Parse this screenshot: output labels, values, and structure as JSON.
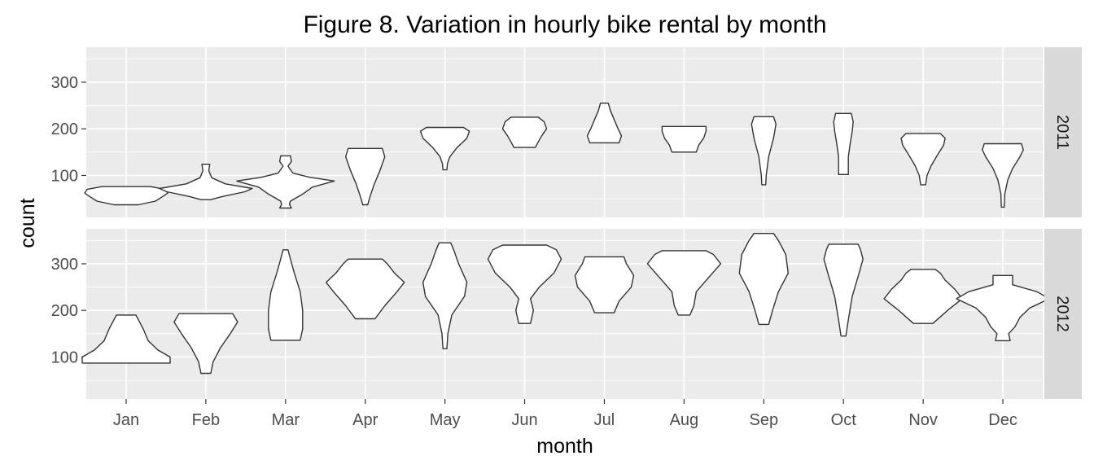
{
  "chart_data": {
    "type": "violin",
    "title": "Figure 8. Variation in hourly bike rental by month",
    "xlabel": "month",
    "ylabel": "count",
    "categories": [
      "Jan",
      "Feb",
      "Mar",
      "Apr",
      "May",
      "Jun",
      "Jul",
      "Aug",
      "Sep",
      "Oct",
      "Nov",
      "Dec"
    ],
    "ylim": [
      10,
      375
    ],
    "yticks": [
      100,
      200,
      300
    ],
    "grid": true,
    "facets": [
      {
        "label": "2011",
        "violins": [
          {
            "month": "Jan",
            "min": 37,
            "max": 76,
            "profile": [
              [
                37,
                0.25
              ],
              [
                45,
                0.6
              ],
              [
                55,
                0.75
              ],
              [
                62,
                0.85
              ],
              [
                70,
                0.8
              ],
              [
                76,
                0.5
              ]
            ]
          },
          {
            "month": "Feb",
            "min": 48,
            "max": 124,
            "profile": [
              [
                48,
                0.1
              ],
              [
                55,
                0.35
              ],
              [
                65,
                0.8
              ],
              [
                72,
                0.95
              ],
              [
                82,
                0.4
              ],
              [
                95,
                0.12
              ],
              [
                110,
                0.06
              ],
              [
                124,
                0.08
              ]
            ]
          },
          {
            "month": "Mar",
            "min": 30,
            "max": 142,
            "profile": [
              [
                30,
                0.12
              ],
              [
                38,
                0.08
              ],
              [
                45,
                0.1
              ],
              [
                60,
                0.35
              ],
              [
                75,
                0.55
              ],
              [
                88,
                1.0
              ],
              [
                96,
                0.5
              ],
              [
                105,
                0.15
              ],
              [
                120,
                0.05
              ],
              [
                130,
                0.12
              ],
              [
                142,
                0.1
              ]
            ]
          },
          {
            "month": "Apr",
            "min": 37,
            "max": 158,
            "profile": [
              [
                37,
                0.05
              ],
              [
                55,
                0.1
              ],
              [
                80,
                0.18
              ],
              [
                110,
                0.3
              ],
              [
                140,
                0.4
              ],
              [
                158,
                0.35
              ]
            ]
          },
          {
            "month": "May",
            "min": 112,
            "max": 203,
            "profile": [
              [
                112,
                0.04
              ],
              [
                125,
                0.05
              ],
              [
                140,
                0.1
              ],
              [
                160,
                0.25
              ],
              [
                180,
                0.45
              ],
              [
                195,
                0.5
              ],
              [
                203,
                0.38
              ]
            ]
          },
          {
            "month": "Jun",
            "min": 160,
            "max": 225,
            "profile": [
              [
                160,
                0.22
              ],
              [
                172,
                0.28
              ],
              [
                185,
                0.35
              ],
              [
                200,
                0.45
              ],
              [
                215,
                0.4
              ],
              [
                225,
                0.28
              ]
            ]
          },
          {
            "month": "Jul",
            "min": 170,
            "max": 255,
            "profile": [
              [
                170,
                0.3
              ],
              [
                185,
                0.35
              ],
              [
                200,
                0.28
              ],
              [
                220,
                0.2
              ],
              [
                240,
                0.12
              ],
              [
                255,
                0.08
              ]
            ]
          },
          {
            "month": "Aug",
            "min": 150,
            "max": 205,
            "profile": [
              [
                150,
                0.25
              ],
              [
                165,
                0.3
              ],
              [
                180,
                0.4
              ],
              [
                195,
                0.45
              ],
              [
                205,
                0.45
              ]
            ]
          },
          {
            "month": "Sep",
            "min": 80,
            "max": 226,
            "profile": [
              [
                80,
                0.04
              ],
              [
                100,
                0.05
              ],
              [
                140,
                0.1
              ],
              [
                180,
                0.2
              ],
              [
                210,
                0.25
              ],
              [
                226,
                0.2
              ]
            ]
          },
          {
            "month": "Oct",
            "min": 102,
            "max": 233,
            "profile": [
              [
                102,
                0.1
              ],
              [
                140,
                0.1
              ],
              [
                170,
                0.14
              ],
              [
                195,
                0.18
              ],
              [
                215,
                0.2
              ],
              [
                233,
                0.16
              ]
            ]
          },
          {
            "month": "Nov",
            "min": 80,
            "max": 190,
            "profile": [
              [
                80,
                0.05
              ],
              [
                100,
                0.08
              ],
              [
                120,
                0.16
              ],
              [
                145,
                0.3
              ],
              [
                165,
                0.42
              ],
              [
                180,
                0.45
              ],
              [
                190,
                0.35
              ]
            ]
          },
          {
            "month": "Dec",
            "min": 32,
            "max": 168,
            "profile": [
              [
                32,
                0.03
              ],
              [
                60,
                0.04
              ],
              [
                90,
                0.1
              ],
              [
                115,
                0.2
              ],
              [
                140,
                0.35
              ],
              [
                155,
                0.42
              ],
              [
                168,
                0.38
              ]
            ]
          }
        ]
      },
      {
        "label": "2012",
        "violins": [
          {
            "month": "Jan",
            "min": 87,
            "max": 190,
            "profile": [
              [
                87,
                0.9
              ],
              [
                100,
                0.9
              ],
              [
                115,
                0.65
              ],
              [
                135,
                0.45
              ],
              [
                160,
                0.35
              ],
              [
                180,
                0.25
              ],
              [
                190,
                0.2
              ]
            ]
          },
          {
            "month": "Feb",
            "min": 65,
            "max": 193,
            "profile": [
              [
                65,
                0.1
              ],
              [
                90,
                0.15
              ],
              [
                120,
                0.3
              ],
              [
                150,
                0.5
              ],
              [
                175,
                0.65
              ],
              [
                193,
                0.55
              ]
            ]
          },
          {
            "month": "Mar",
            "min": 136,
            "max": 330,
            "profile": [
              [
                136,
                0.3
              ],
              [
                160,
                0.35
              ],
              [
                200,
                0.35
              ],
              [
                240,
                0.3
              ],
              [
                280,
                0.18
              ],
              [
                310,
                0.1
              ],
              [
                330,
                0.05
              ]
            ]
          },
          {
            "month": "Apr",
            "min": 182,
            "max": 310,
            "profile": [
              [
                182,
                0.2
              ],
              [
                210,
                0.4
              ],
              [
                240,
                0.65
              ],
              [
                260,
                0.8
              ],
              [
                280,
                0.6
              ],
              [
                300,
                0.45
              ],
              [
                310,
                0.35
              ]
            ]
          },
          {
            "month": "May",
            "min": 118,
            "max": 345,
            "profile": [
              [
                118,
                0.04
              ],
              [
                150,
                0.06
              ],
              [
                190,
                0.14
              ],
              [
                230,
                0.4
              ],
              [
                260,
                0.45
              ],
              [
                300,
                0.28
              ],
              [
                330,
                0.18
              ],
              [
                345,
                0.12
              ]
            ]
          },
          {
            "month": "Jun",
            "min": 172,
            "max": 340,
            "profile": [
              [
                172,
                0.12
              ],
              [
                200,
                0.18
              ],
              [
                225,
                0.12
              ],
              [
                250,
                0.3
              ],
              [
                280,
                0.6
              ],
              [
                310,
                0.75
              ],
              [
                330,
                0.65
              ],
              [
                340,
                0.45
              ]
            ]
          },
          {
            "month": "Jul",
            "min": 195,
            "max": 315,
            "profile": [
              [
                195,
                0.2
              ],
              [
                220,
                0.3
              ],
              [
                250,
                0.55
              ],
              [
                275,
                0.6
              ],
              [
                300,
                0.45
              ],
              [
                315,
                0.4
              ]
            ]
          },
          {
            "month": "Aug",
            "min": 190,
            "max": 328,
            "profile": [
              [
                190,
                0.12
              ],
              [
                210,
                0.2
              ],
              [
                240,
                0.25
              ],
              [
                270,
                0.5
              ],
              [
                300,
                0.75
              ],
              [
                320,
                0.6
              ],
              [
                328,
                0.45
              ]
            ]
          },
          {
            "month": "Sep",
            "min": 170,
            "max": 365,
            "profile": [
              [
                170,
                0.1
              ],
              [
                200,
                0.18
              ],
              [
                240,
                0.3
              ],
              [
                280,
                0.5
              ],
              [
                320,
                0.45
              ],
              [
                350,
                0.3
              ],
              [
                365,
                0.2
              ]
            ]
          },
          {
            "month": "Oct",
            "min": 145,
            "max": 342,
            "profile": [
              [
                145,
                0.05
              ],
              [
                180,
                0.1
              ],
              [
                230,
                0.18
              ],
              [
                280,
                0.32
              ],
              [
                310,
                0.4
              ],
              [
                330,
                0.35
              ],
              [
                342,
                0.3
              ]
            ]
          },
          {
            "month": "Nov",
            "min": 172,
            "max": 288,
            "profile": [
              [
                172,
                0.2
              ],
              [
                200,
                0.5
              ],
              [
                225,
                0.8
              ],
              [
                245,
                0.65
              ],
              [
                265,
                0.45
              ],
              [
                280,
                0.35
              ],
              [
                288,
                0.25
              ]
            ]
          },
          {
            "month": "Dec",
            "min": 135,
            "max": 275,
            "profile": [
              [
                135,
                0.15
              ],
              [
                150,
                0.12
              ],
              [
                165,
                0.25
              ],
              [
                185,
                0.35
              ],
              [
                205,
                0.55
              ],
              [
                225,
                0.95
              ],
              [
                240,
                0.7
              ],
              [
                255,
                0.2
              ],
              [
                275,
                0.2
              ]
            ]
          }
        ]
      }
    ]
  }
}
